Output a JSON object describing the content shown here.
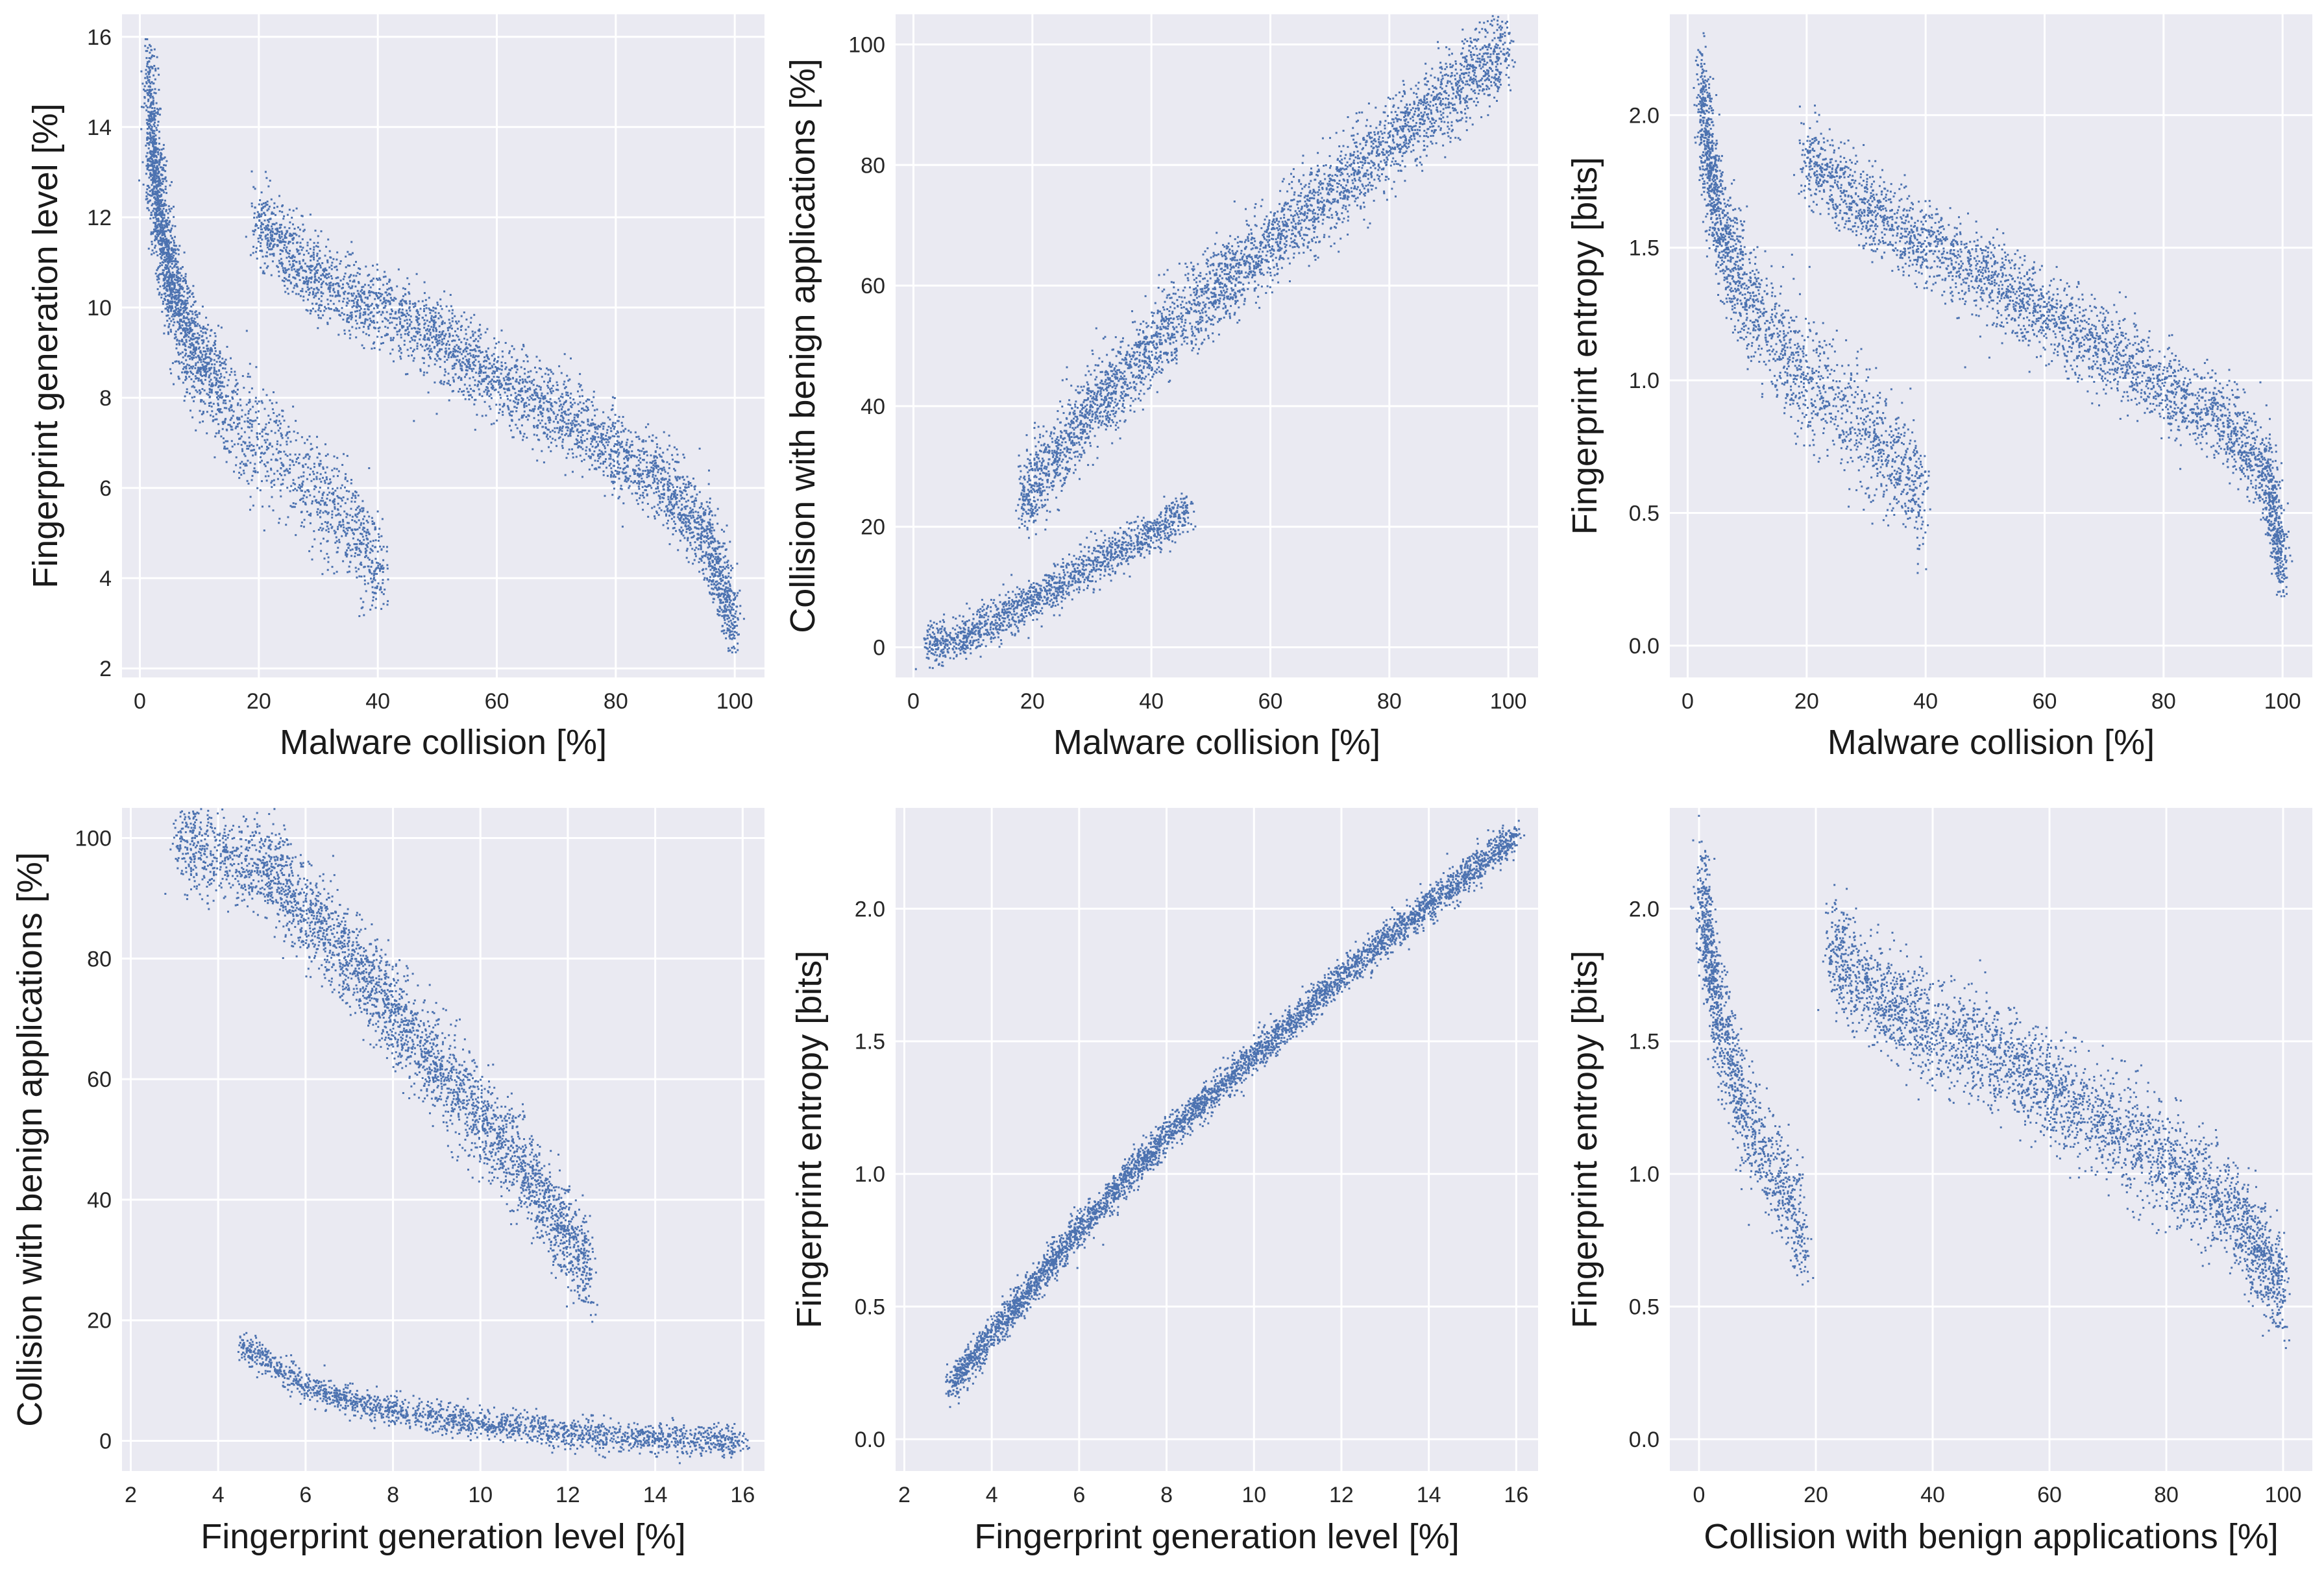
{
  "figure": {
    "background": "#ffffff",
    "panel_background": "#eaeaf2",
    "grid_color": "#ffffff",
    "point_color": "#4c72b0"
  },
  "chart_data": [
    {
      "type": "scatter",
      "id": "p1",
      "xlabel": "Malware collision [%]",
      "ylabel": "Fingerprint generation level [%]",
      "xlim": [
        -3,
        105
      ],
      "ylim": [
        1.8,
        16.5
      ],
      "xticks": [
        0,
        20,
        40,
        60,
        80,
        100
      ],
      "yticks": [
        2,
        4,
        6,
        8,
        10,
        12,
        14,
        16
      ],
      "clusters": [
        {
          "kind": "band",
          "centers": [
            [
              2,
              13.5
            ],
            [
              5,
              10.5
            ],
            [
              10,
              8.6
            ],
            [
              18,
              7.3
            ],
            [
              26,
              6.4
            ],
            [
              35,
              5.1
            ],
            [
              41,
              4.1
            ]
          ],
          "spread": 1.2,
          "count": 1900
        },
        {
          "kind": "band",
          "centers": [
            [
              1.5,
              15.5
            ],
            [
              2,
              13
            ],
            [
              4,
              11
            ],
            [
              8,
              9.5
            ],
            [
              14,
              8.4
            ]
          ],
          "spread": 0.8,
          "count": 800
        },
        {
          "kind": "band",
          "centers": [
            [
              19,
              12
            ],
            [
              30,
              10.6
            ],
            [
              45,
              9.7
            ],
            [
              60,
              8.4
            ],
            [
              75,
              7.3
            ],
            [
              88,
              6.1
            ],
            [
              95,
              4.9
            ],
            [
              100,
              3.0
            ]
          ],
          "spread": 0.9,
          "count": 3400
        }
      ]
    },
    {
      "type": "scatter",
      "id": "p2",
      "xlabel": "Malware collision [%]",
      "ylabel": "Collision with benign applications [%]",
      "xlim": [
        -3,
        105
      ],
      "ylim": [
        -5,
        105
      ],
      "xticks": [
        0,
        20,
        40,
        60,
        80,
        100
      ],
      "yticks": [
        0,
        20,
        40,
        60,
        80,
        100
      ],
      "clusters": [
        {
          "kind": "band",
          "centers": [
            [
              2,
              0.5
            ],
            [
              8,
              2
            ],
            [
              15,
              5
            ],
            [
              22,
              9
            ],
            [
              30,
              14
            ],
            [
              38,
              18
            ],
            [
              46,
              23
            ]
          ],
          "spread": 3.5,
          "count": 1500
        },
        {
          "kind": "band",
          "centers": [
            [
              18,
              24
            ],
            [
              30,
              40
            ],
            [
              45,
              55
            ],
            [
              60,
              67
            ],
            [
              75,
              80
            ],
            [
              90,
              92
            ],
            [
              100,
              100
            ]
          ],
          "spread": 7,
          "count": 3600
        }
      ]
    },
    {
      "type": "scatter",
      "id": "p3",
      "xlabel": "Malware collision [%]",
      "ylabel": "Fingerprint entropy [bits]",
      "xlim": [
        -3,
        105
      ],
      "ylim": [
        -0.12,
        2.38
      ],
      "xticks": [
        0,
        20,
        40,
        60,
        80,
        100
      ],
      "yticks": [
        0.0,
        0.5,
        1.0,
        1.5,
        2.0
      ],
      "clusters": [
        {
          "kind": "band",
          "centers": [
            [
              2,
              2.1
            ],
            [
              5,
              1.6
            ],
            [
              10,
              1.3
            ],
            [
              20,
              1.0
            ],
            [
              30,
              0.8
            ],
            [
              40,
              0.55
            ]
          ],
          "spread": 0.22,
          "count": 2000
        },
        {
          "kind": "band",
          "centers": [
            [
              19,
              1.85
            ],
            [
              30,
              1.65
            ],
            [
              45,
              1.45
            ],
            [
              60,
              1.25
            ],
            [
              75,
              1.05
            ],
            [
              90,
              0.85
            ],
            [
              97,
              0.65
            ],
            [
              100,
              0.3
            ]
          ],
          "spread": 0.16,
          "count": 3200
        }
      ]
    },
    {
      "type": "scatter",
      "id": "p4",
      "xlabel": "Fingerprint generation level [%]",
      "ylabel": "Collision with benign applications [%]",
      "xlim": [
        1.8,
        16.5
      ],
      "ylim": [
        -5,
        105
      ],
      "xticks": [
        2,
        4,
        6,
        8,
        10,
        12,
        14,
        16
      ],
      "yticks": [
        0,
        20,
        40,
        60,
        80,
        100
      ],
      "clusters": [
        {
          "kind": "band",
          "centers": [
            [
              3,
              100
            ],
            [
              5,
              96
            ],
            [
              7,
              80
            ],
            [
              9,
              62
            ],
            [
              11,
              45
            ],
            [
              12.5,
              28
            ]
          ],
          "spread": 8,
          "count": 3300
        },
        {
          "kind": "band",
          "centers": [
            [
              4.5,
              16
            ],
            [
              6,
              9
            ],
            [
              8,
              5
            ],
            [
              10,
              3
            ],
            [
              12,
              1.5
            ],
            [
              14,
              0.5
            ],
            [
              16,
              0
            ]
          ],
          "spread": 2.5,
          "count": 1900
        }
      ]
    },
    {
      "type": "scatter",
      "id": "p5",
      "xlabel": "Fingerprint generation level [%]",
      "ylabel": "Fingerprint entropy [bits]",
      "xlim": [
        1.8,
        16.5
      ],
      "ylim": [
        -0.12,
        2.38
      ],
      "xticks": [
        2,
        4,
        6,
        8,
        10,
        12,
        14,
        16
      ],
      "yticks": [
        0.0,
        0.5,
        1.0,
        1.5,
        2.0
      ],
      "clusters": [
        {
          "kind": "band",
          "centers": [
            [
              3,
              0.2
            ],
            [
              4.5,
              0.5
            ],
            [
              6,
              0.8
            ],
            [
              8,
              1.15
            ],
            [
              10,
              1.45
            ],
            [
              12,
              1.75
            ],
            [
              14,
              2.02
            ],
            [
              16,
              2.28
            ]
          ],
          "spread": 0.06,
          "count": 4200
        }
      ]
    },
    {
      "type": "scatter",
      "id": "p6",
      "xlabel": "Collision with benign applications [%]",
      "ylabel": "Fingerprint entropy [bits]",
      "xlim": [
        -5,
        105
      ],
      "ylim": [
        -0.12,
        2.38
      ],
      "xticks": [
        0,
        20,
        40,
        60,
        80,
        100
      ],
      "yticks": [
        0.0,
        0.5,
        1.0,
        1.5,
        2.0
      ],
      "clusters": [
        {
          "kind": "band",
          "centers": [
            [
              0,
              2.1
            ],
            [
              3,
              1.6
            ],
            [
              8,
              1.2
            ],
            [
              14,
              0.95
            ],
            [
              18,
              0.75
            ]
          ],
          "spread": 0.2,
          "count": 1300
        },
        {
          "kind": "band",
          "centers": [
            [
              22,
              1.85
            ],
            [
              35,
              1.6
            ],
            [
              50,
              1.45
            ],
            [
              65,
              1.25
            ],
            [
              80,
              1.05
            ],
            [
              92,
              0.85
            ],
            [
              100,
              0.55
            ]
          ],
          "spread": 0.2,
          "count": 3300
        }
      ]
    }
  ]
}
